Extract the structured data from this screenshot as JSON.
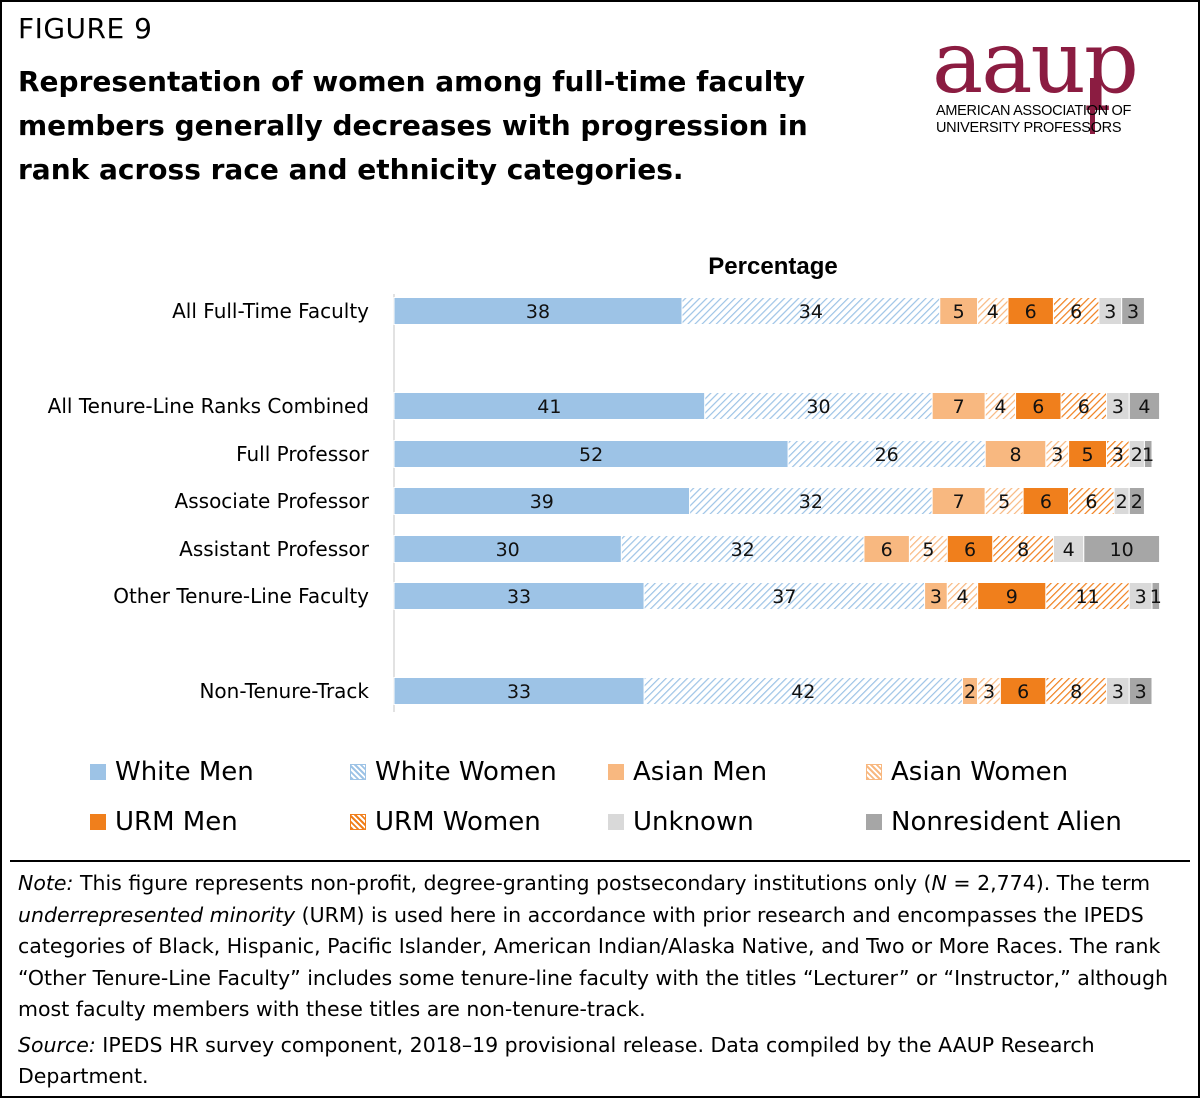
{
  "figure_label": "FIGURE 9",
  "title": "Representation of women among full-time faculty members generally decreases with progression in rank across race and ethnicity categories.",
  "logo": {
    "wordmark": "aaup",
    "line1": "AMERICAN ASSOCIATION OF",
    "line2": "UNIVERSITY PROFESSORS",
    "color": "#8b1c41"
  },
  "chart_data": {
    "type": "bar",
    "orientation": "horizontal",
    "stacked": true,
    "title": "Percentage",
    "xlim": [
      0,
      100
    ],
    "grid": false,
    "legend_position": "bottom",
    "categories": [
      "All Full-Time Faculty",
      "All Tenure-Line Ranks Combined",
      "Full Professor",
      "Associate Professor",
      "Assistant Professor",
      "Other Tenure-Line Faculty",
      "Non-Tenure-Track"
    ],
    "series": [
      {
        "name": "White Men",
        "color": "#9dc3e6",
        "pattern": "solid",
        "values": [
          38,
          41,
          52,
          39,
          30,
          33,
          33
        ]
      },
      {
        "name": "White Women",
        "color": "#9dc3e6",
        "pattern": "hatch",
        "values": [
          34,
          30,
          26,
          32,
          32,
          37,
          42
        ]
      },
      {
        "name": "Asian Men",
        "color": "#f8b880",
        "pattern": "solid",
        "values": [
          5,
          7,
          8,
          7,
          6,
          3,
          2
        ]
      },
      {
        "name": "Asian Women",
        "color": "#f8b880",
        "pattern": "hatch",
        "values": [
          4,
          4,
          3,
          5,
          5,
          4,
          3
        ]
      },
      {
        "name": "URM Men",
        "color": "#f07f1c",
        "pattern": "solid",
        "values": [
          6,
          6,
          5,
          6,
          6,
          9,
          6
        ]
      },
      {
        "name": "URM Women",
        "color": "#f07f1c",
        "pattern": "hatch",
        "values": [
          6,
          6,
          3,
          6,
          8,
          11,
          8
        ]
      },
      {
        "name": "Unknown",
        "color": "#d9d9d9",
        "pattern": "solid",
        "values": [
          3,
          3,
          2,
          2,
          4,
          3,
          3
        ]
      },
      {
        "name": "Nonresident Alien",
        "color": "#a6a6a6",
        "pattern": "solid",
        "values": [
          3,
          4,
          1,
          2,
          10,
          1,
          3
        ]
      }
    ]
  },
  "notes": {
    "note_label": "Note:",
    "note_a": " This figure represents non-profit, degree-granting postsecondary institutions only (",
    "note_n": "N",
    "note_b": " = 2,774). The term ",
    "note_term": "underrepresented minority",
    "note_c": " (URM) is used here in accordance with prior research and encompasses the IPEDS categories of Black, Hispanic, Pacific Islander, American Indian/Alaska Native, and Two or More Races. The rank “Other Tenure-Line Faculty” includes some tenure-line faculty with the titles “Lecturer” or “Instructor,” although most faculty members with these titles are non-tenure-track.",
    "source_label": "Source:",
    "source_text": " IPEDS HR survey component, 2018–19 provisional release. Data compiled by the AAUP Research Department."
  }
}
